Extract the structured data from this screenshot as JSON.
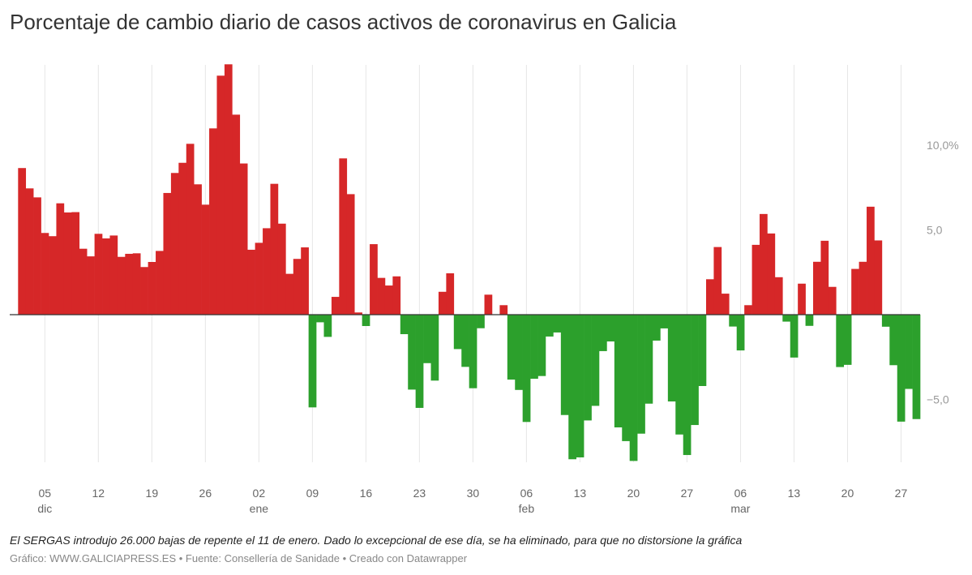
{
  "chart_data": {
    "type": "bar",
    "title": "Porcentaje de cambio diario de casos activos de coronavirus en Galicia",
    "xlabel": "",
    "ylabel": "",
    "start_date": "2020-12-02",
    "ylim": [
      -8.8,
      14.8
    ],
    "yticks": [
      {
        "value": 10,
        "label": "10,0%"
      },
      {
        "value": 5,
        "label": "5,0"
      },
      {
        "value": -5,
        "label": "−5,0"
      }
    ],
    "xticks": [
      {
        "day": 3,
        "label": "05",
        "sub": "dic"
      },
      {
        "day": 10,
        "label": "12"
      },
      {
        "day": 17,
        "label": "19"
      },
      {
        "day": 24,
        "label": "26"
      },
      {
        "day": 31,
        "label": "02",
        "sub": "ene"
      },
      {
        "day": 38,
        "label": "09"
      },
      {
        "day": 45,
        "label": "16"
      },
      {
        "day": 52,
        "label": "23"
      },
      {
        "day": 59,
        "label": "30"
      },
      {
        "day": 66,
        "label": "06",
        "sub": "feb"
      },
      {
        "day": 73,
        "label": "13"
      },
      {
        "day": 80,
        "label": "20"
      },
      {
        "day": 87,
        "label": "27"
      },
      {
        "day": 94,
        "label": "06",
        "sub": "mar"
      },
      {
        "day": 101,
        "label": "13"
      },
      {
        "day": 108,
        "label": "20"
      },
      {
        "day": 115,
        "label": "27"
      }
    ],
    "colors": {
      "positive": "#d62728",
      "negative": "#2ca02c",
      "zero_line": "#333333",
      "grid": "#e6e6e6"
    },
    "values": [
      8.65,
      7.45,
      6.92,
      4.82,
      4.63,
      6.57,
      6.03,
      6.05,
      3.89,
      3.44,
      4.77,
      4.5,
      4.67,
      3.41,
      3.59,
      3.62,
      2.81,
      3.11,
      3.76,
      7.18,
      8.36,
      8.96,
      10.08,
      7.69,
      6.49,
      10.99,
      14.1,
      14.77,
      11.8,
      8.92,
      3.83,
      4.24,
      5.1,
      7.72,
      5.37,
      2.41,
      3.29,
      3.97,
      -5.47,
      -0.45,
      -1.31,
      1.05,
      9.22,
      7.11,
      0.13,
      -0.67,
      4.16,
      2.17,
      1.72,
      2.26,
      -1.15,
      -4.42,
      -5.5,
      -2.86,
      -3.89,
      1.35,
      2.44,
      -2.03,
      -3.08,
      -4.34,
      -0.8,
      1.18,
      0,
      0.56,
      -3.83,
      -4.44,
      -6.33,
      -3.78,
      -3.62,
      -1.29,
      -1.05,
      -5.92,
      -8.53,
      -8.42,
      -6.24,
      -5.38,
      -2.15,
      -1.58,
      -6.65,
      -7.46,
      -8.63,
      -7.02,
      -5.25,
      -1.53,
      -0.81,
      -5.12,
      -7.07,
      -8.28,
      -6.51,
      -4.21,
      2.09,
      3.99,
      1.24,
      -0.7,
      -2.11,
      0.56,
      4.12,
      5.94,
      4.79,
      2.21,
      -0.41,
      -2.53,
      1.83,
      -0.66,
      3.12,
      4.36,
      1.64,
      -3.09,
      -2.96,
      2.7,
      3.12,
      6.37,
      4.38,
      -0.71,
      -2.98,
      -6.31,
      -4.38,
      -6.16
    ]
  },
  "footer": {
    "note": "El SERGAS introdujo 26.000 bajas de repente el 11 de enero. Dado lo excepcional de ese día, se ha eliminado, para que no distorsione la gráfica",
    "source": "Gráfico: WWW.GALICIAPRESS.ES • Fuente: Consellería de Sanidade • Creado con Datawrapper"
  }
}
